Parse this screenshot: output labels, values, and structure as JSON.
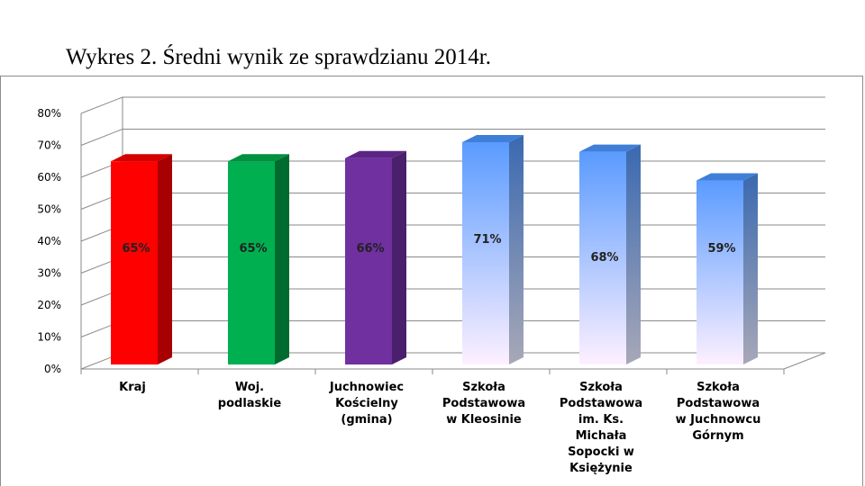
{
  "page_title": "Wykres 2. Średni wynik ze sprawdzianu 2014r.",
  "chart_data": {
    "type": "bar",
    "style": "3d-column",
    "title": "",
    "xlabel": "",
    "ylabel": "",
    "ylim": [
      0,
      80
    ],
    "yticks": [
      "0%",
      "10%",
      "20%",
      "30%",
      "40%",
      "50%",
      "60%",
      "70%",
      "80%"
    ],
    "grid": true,
    "legend": "none",
    "categories": [
      [
        "Kraj"
      ],
      [
        "Woj.",
        "podlaskie"
      ],
      [
        "Juchnowiec",
        "Kościelny",
        "(gmina)"
      ],
      [
        "Szkoła",
        "Podstawowa",
        "w Kleosinie"
      ],
      [
        "Szkoła",
        "Podstawowa",
        "im. Ks.",
        "Michała",
        "Sopocki w",
        "Księżynie"
      ],
      [
        "Szkoła",
        "Podstawowa",
        "w Juchnowcu",
        "Górnym"
      ]
    ],
    "values": [
      65,
      65,
      66,
      71,
      68,
      59
    ],
    "data_labels": [
      "65%",
      "65%",
      "66%",
      "71%",
      "68%",
      "59%"
    ],
    "colors": [
      {
        "front": "#ff0000",
        "side": "#a80000",
        "top": "#d40000"
      },
      {
        "front": "#00b050",
        "side": "#006b2e",
        "top": "#009040"
      },
      {
        "front": "#7030a0",
        "side": "#4a1f6b",
        "top": "#5b2585"
      },
      {
        "front_top": "#5a9bff",
        "front_bottom": "#fdf0ff",
        "side": "#3a69b0",
        "top": "#3f7fd8"
      },
      {
        "front_top": "#5a9bff",
        "front_bottom": "#fdf0ff",
        "side": "#3a69b0",
        "top": "#3f7fd8"
      },
      {
        "front_top": "#5a9bff",
        "front_bottom": "#fdf0ff",
        "side": "#3a69b0",
        "top": "#3f7fd8"
      }
    ]
  }
}
